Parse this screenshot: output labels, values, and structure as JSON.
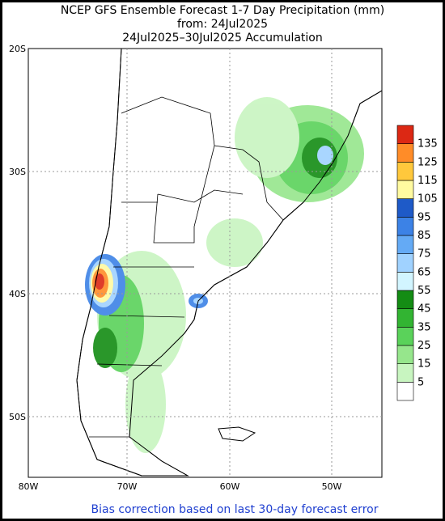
{
  "header": {
    "title": "NCEP GFS Ensemble Forecast 1-7 Day Precipitation (mm)",
    "from": "from: 24Jul2025",
    "period": "24Jul2025–30Jul2025 Accumulation"
  },
  "map": {
    "lat_labels": [
      "20S",
      "30S",
      "40S",
      "50S"
    ],
    "lon_labels": [
      "80W",
      "70W",
      "60W",
      "50W"
    ]
  },
  "colorbar": {
    "levels": [
      5,
      15,
      25,
      35,
      45,
      55,
      65,
      75,
      85,
      95,
      105,
      115,
      125,
      135
    ],
    "colors": [
      "#ffffff",
      "#c8f5c0",
      "#96e68c",
      "#5ad25a",
      "#32b432",
      "#148c14",
      "#d2f5ff",
      "#a0d2ff",
      "#64aaf5",
      "#3c82e6",
      "#1e5ac8",
      "#fffaa0",
      "#ffc83c",
      "#ff8c28",
      "#dc2814"
    ]
  },
  "footer": "Bias correction based on last 30-day forecast error"
}
